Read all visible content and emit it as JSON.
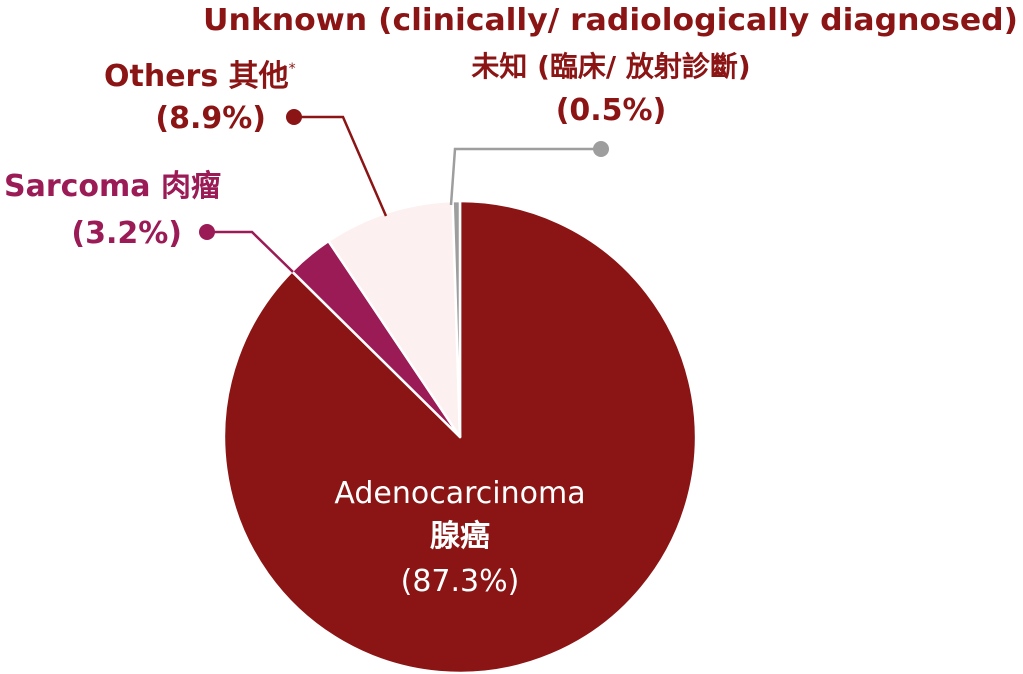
{
  "chart_data": {
    "type": "pie",
    "start_angle_deg": 0,
    "direction": "clockwise",
    "slices": [
      {
        "key": "adenocarcinoma",
        "label_en": "Adenocarcinoma",
        "label_zh": "腺癌",
        "value": 87.3,
        "value_text": "(87.3%)",
        "color": "#8b1414"
      },
      {
        "key": "sarcoma",
        "label_en": "Sarcoma 肉瘤",
        "value": 3.2,
        "value_text": "(3.2%)",
        "color": "#9a1b55"
      },
      {
        "key": "others",
        "label_en": "Others 其他",
        "label_marker": "*",
        "value": 8.9,
        "value_text": "(8.9%)",
        "color": "#fdf0f0"
      },
      {
        "key": "unknown",
        "label_en": "Unknown (clinically/ radiologically diagnosed)",
        "label_zh": "未知 (臨床/ 放射診斷)",
        "value": 0.5,
        "value_text": "(0.5%)",
        "color": "#9e9e9e"
      }
    ],
    "label_colors": {
      "adenocarcinoma": "#ffffff",
      "sarcoma": "#9a1b55",
      "others": "#8b1414",
      "unknown": "#8b1414",
      "unknown_value": "#8b1414"
    },
    "leader_colors": {
      "sarcoma": "#9a1b55",
      "others": "#8b1414",
      "unknown": "#9e9e9e"
    }
  }
}
